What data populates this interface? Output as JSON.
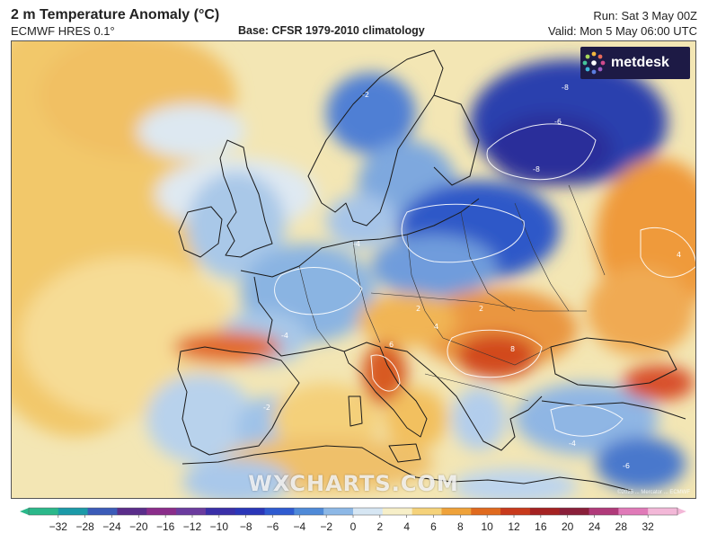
{
  "header": {
    "title": "2 m Temperature Anomaly (°C)",
    "model": "ECMWF HRES 0.1°",
    "base": "Base: CFSR 1979-2010 climatology",
    "run": "Run: Sat 3 May 00Z",
    "valid": "Valid: Mon 5 May 06:00 UTC"
  },
  "branding": {
    "logo": "metdesk",
    "logo_icon": "metdesk-dots-icon",
    "watermark": "WXCHARTS.COM",
    "credit": "©2025 ... Mercator ... ECMWF"
  },
  "colorbar": {
    "ticks": [
      "−32",
      "−28",
      "−24",
      "−20",
      "−16",
      "−12",
      "−10",
      "−8",
      "−6",
      "−4",
      "−2",
      "0",
      "2",
      "4",
      "6",
      "8",
      "10",
      "12",
      "16",
      "20",
      "24",
      "28",
      "32"
    ],
    "colors": [
      "#2bb88a",
      "#1b9aa8",
      "#3b5bb8",
      "#5a2d8a",
      "#8a2d8a",
      "#6b3b9e",
      "#3a2fa8",
      "#2a36b8",
      "#2f5bd0",
      "#4f8ad8",
      "#8db8e6",
      "#d6e6f3",
      "#f7efc8",
      "#f5d27a",
      "#efa23a",
      "#e06a1e",
      "#c83a1c",
      "#a52222",
      "#8a1f3a",
      "#b03a7a",
      "#e07ab8",
      "#f3b8d8"
    ]
  },
  "map": {
    "contour_labels": [
      "-2",
      "-4",
      "-6",
      "-8",
      "2",
      "4",
      "8",
      "6",
      "-2",
      "-4",
      "2",
      "4",
      "-4",
      "-6",
      "-8"
    ]
  }
}
